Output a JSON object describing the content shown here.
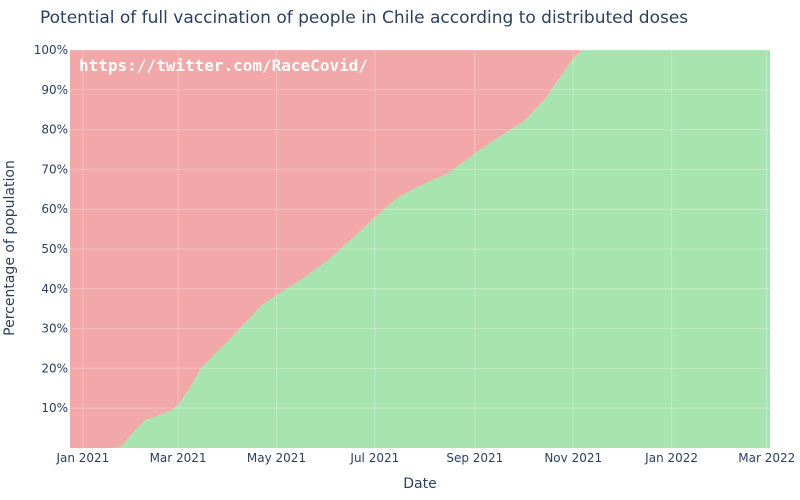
{
  "chart_data": {
    "type": "area",
    "title": "Potential of full vaccination of people in Chile according to distributed doses",
    "xlabel": "Date",
    "ylabel": "Percentage of population",
    "watermark": "https://twitter.com/RaceCovid/",
    "x_range": [
      "2020-12-24",
      "2022-03-03"
    ],
    "y_range": [
      0,
      100
    ],
    "x_ticks": [
      {
        "date": "2021-01-01",
        "label": "Jan 2021"
      },
      {
        "date": "2021-03-01",
        "label": "Mar 2021"
      },
      {
        "date": "2021-05-01",
        "label": "May 2021"
      },
      {
        "date": "2021-07-01",
        "label": "Jul 2021"
      },
      {
        "date": "2021-09-01",
        "label": "Sep 2021"
      },
      {
        "date": "2021-11-01",
        "label": "Nov 2021"
      },
      {
        "date": "2022-01-01",
        "label": "Jan 2022"
      },
      {
        "date": "2022-03-01",
        "label": "Mar 2022"
      }
    ],
    "y_ticks": [
      {
        "value": 10,
        "label": "10%"
      },
      {
        "value": 20,
        "label": "20%"
      },
      {
        "value": 30,
        "label": "30%"
      },
      {
        "value": 40,
        "label": "40%"
      },
      {
        "value": 50,
        "label": "50%"
      },
      {
        "value": 60,
        "label": "60%"
      },
      {
        "value": 70,
        "label": "70%"
      },
      {
        "value": 80,
        "label": "80%"
      },
      {
        "value": 90,
        "label": "90%"
      },
      {
        "value": 100,
        "label": "100%"
      }
    ],
    "series": [
      {
        "color": "#a8e4b0",
        "points": [
          {
            "x": "2020-12-24",
            "y": 0
          },
          {
            "x": "2021-01-20",
            "y": 0
          },
          {
            "x": "2021-01-25",
            "y": 0.5
          },
          {
            "x": "2021-02-01",
            "y": 4
          },
          {
            "x": "2021-02-08",
            "y": 7
          },
          {
            "x": "2021-02-15",
            "y": 8
          },
          {
            "x": "2021-02-25",
            "y": 9.5
          },
          {
            "x": "2021-03-01",
            "y": 11
          },
          {
            "x": "2021-03-08",
            "y": 15
          },
          {
            "x": "2021-03-15",
            "y": 20
          },
          {
            "x": "2021-03-22",
            "y": 23
          },
          {
            "x": "2021-04-01",
            "y": 27
          },
          {
            "x": "2021-04-08",
            "y": 30
          },
          {
            "x": "2021-04-15",
            "y": 33
          },
          {
            "x": "2021-04-22",
            "y": 36
          },
          {
            "x": "2021-05-01",
            "y": 38.5
          },
          {
            "x": "2021-05-15",
            "y": 42
          },
          {
            "x": "2021-06-01",
            "y": 47
          },
          {
            "x": "2021-06-15",
            "y": 52
          },
          {
            "x": "2021-07-01",
            "y": 58
          },
          {
            "x": "2021-07-15",
            "y": 63
          },
          {
            "x": "2021-08-01",
            "y": 66.5
          },
          {
            "x": "2021-08-15",
            "y": 69
          },
          {
            "x": "2021-09-01",
            "y": 74
          },
          {
            "x": "2021-09-15",
            "y": 78
          },
          {
            "x": "2021-10-01",
            "y": 82
          },
          {
            "x": "2021-10-15",
            "y": 88
          },
          {
            "x": "2021-10-25",
            "y": 94
          },
          {
            "x": "2021-11-01",
            "y": 98
          },
          {
            "x": "2021-11-06",
            "y": 100
          },
          {
            "x": "2022-03-03",
            "y": 100
          }
        ]
      },
      {
        "color": "#f2a7a8",
        "points": [
          {
            "x": "2020-12-24",
            "y": 100
          },
          {
            "x": "2022-03-03",
            "y": 100
          }
        ]
      }
    ],
    "grid": true,
    "legend": false
  }
}
